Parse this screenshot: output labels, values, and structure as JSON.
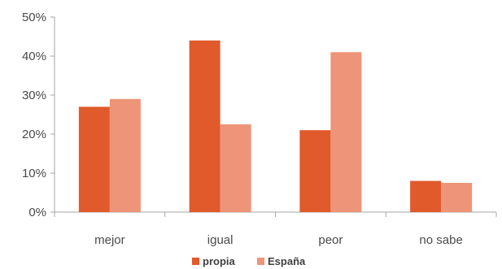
{
  "chart_data": {
    "type": "bar",
    "categories": [
      "mejor",
      "igual",
      "peor",
      "no sabe"
    ],
    "series": [
      {
        "name": "propia",
        "values": [
          27,
          44,
          21,
          8
        ],
        "color": "#e05a2b"
      },
      {
        "name": "España",
        "values": [
          29,
          22.5,
          41,
          7.5
        ],
        "color": "#ee9478"
      }
    ],
    "ylim": [
      0,
      50
    ],
    "yticks": [
      0,
      10,
      20,
      30,
      40,
      50
    ],
    "ytick_labels": [
      "0%",
      "10%",
      "20%",
      "30%",
      "40%",
      "50%"
    ],
    "grid": false,
    "legend_position": "bottom",
    "axis_color": "#a6a6a6"
  }
}
